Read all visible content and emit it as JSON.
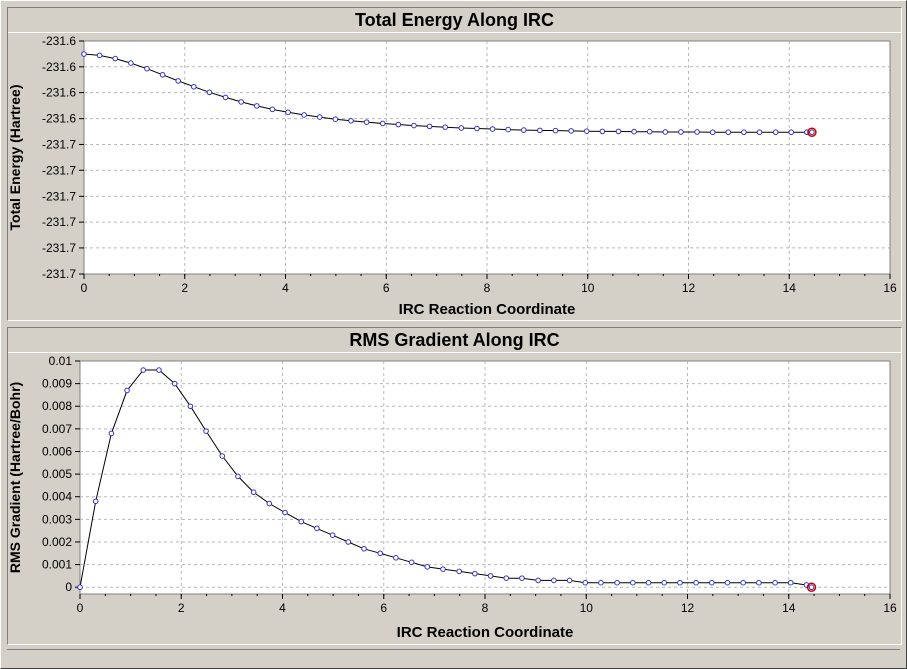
{
  "chart_data": [
    {
      "type": "line",
      "title": "Total Energy Along IRC",
      "xlabel": "IRC Reaction Coordinate",
      "ylabel": "Total Energy (Hartree)",
      "xlim": [
        0,
        16
      ],
      "ylim": [
        -231.7338,
        -231.6462
      ],
      "x_ticks": [
        0,
        2,
        4,
        6,
        8,
        10,
        12,
        14,
        16
      ],
      "y_tick_values": [
        -231.6462,
        -231.6559,
        -231.6656,
        -231.6754,
        -231.6851,
        -231.6948,
        -231.7046,
        -231.7143,
        -231.724,
        -231.7338
      ],
      "y_tick_labels": [
        "-231.6",
        "-231.6",
        "-231.6",
        "-231.6",
        "-231.7",
        "-231.7",
        "-231.7",
        "-231.7",
        "-231.7",
        "-231.7"
      ],
      "grid": true,
      "series": [
        {
          "color": "#000000",
          "marker_color": "#3333cc",
          "x": [
            0,
            0.31,
            0.62,
            0.93,
            1.25,
            1.56,
            1.87,
            2.18,
            2.49,
            2.81,
            3.12,
            3.43,
            3.74,
            4.05,
            4.37,
            4.68,
            4.99,
            5.3,
            5.61,
            5.93,
            6.24,
            6.55,
            6.86,
            7.17,
            7.49,
            7.8,
            8.11,
            8.42,
            8.73,
            9.05,
            9.36,
            9.67,
            9.98,
            10.29,
            10.61,
            10.92,
            11.23,
            11.54,
            11.85,
            12.17,
            12.48,
            12.79,
            13.1,
            13.41,
            13.73,
            14.04,
            14.35,
            14.45
          ],
          "values": [
            -231.6511,
            -231.6516,
            -231.6528,
            -231.6545,
            -231.6566,
            -231.6589,
            -231.6612,
            -231.6634,
            -231.6655,
            -231.6674,
            -231.6691,
            -231.6706,
            -231.6719,
            -231.673,
            -231.674,
            -231.6748,
            -231.6756,
            -231.6762,
            -231.6767,
            -231.6772,
            -231.6776,
            -231.678,
            -231.6783,
            -231.6786,
            -231.6789,
            -231.6791,
            -231.6793,
            -231.6795,
            -231.6797,
            -231.6798,
            -231.6799,
            -231.68,
            -231.6801,
            -231.6802,
            -231.6802,
            -231.6803,
            -231.6803,
            -231.6804,
            -231.6804,
            -231.6804,
            -231.6805,
            -231.6805,
            -231.6805,
            -231.6805,
            -231.6805,
            -231.6805,
            -231.6805,
            -231.6805
          ]
        }
      ],
      "highlight_point": {
        "x": 14.45,
        "y": -231.6805,
        "color": "#cc0000"
      }
    },
    {
      "type": "line",
      "title": "RMS Gradient Along IRC",
      "xlabel": "IRC Reaction Coordinate",
      "ylabel": "RMS Gradient (Hartree/Bohr)",
      "xlim": [
        0,
        16
      ],
      "ylim": [
        -0.0003,
        0.01
      ],
      "x_ticks": [
        0,
        2,
        4,
        6,
        8,
        10,
        12,
        14,
        16
      ],
      "y_tick_values": [
        0,
        0.001,
        0.002,
        0.003,
        0.004,
        0.005,
        0.006,
        0.007,
        0.008,
        0.009,
        0.01
      ],
      "y_tick_labels": [
        "0",
        "0.001",
        "0.002",
        "0.003",
        "0.004",
        "0.005",
        "0.006",
        "0.007",
        "0.008",
        "0.009",
        "0.01"
      ],
      "grid": true,
      "series": [
        {
          "color": "#000000",
          "marker_color": "#3333cc",
          "x": [
            0,
            0.31,
            0.62,
            0.93,
            1.25,
            1.56,
            1.87,
            2.18,
            2.49,
            2.81,
            3.12,
            3.43,
            3.74,
            4.05,
            4.37,
            4.68,
            4.99,
            5.3,
            5.61,
            5.93,
            6.24,
            6.55,
            6.86,
            7.17,
            7.49,
            7.8,
            8.11,
            8.42,
            8.73,
            9.05,
            9.36,
            9.67,
            9.98,
            10.29,
            10.61,
            10.92,
            11.23,
            11.54,
            11.85,
            12.17,
            12.48,
            12.79,
            13.1,
            13.41,
            13.73,
            14.04,
            14.35,
            14.45
          ],
          "values": [
            0.0,
            0.0038,
            0.0068,
            0.0087,
            0.0096,
            0.0096,
            0.009,
            0.008,
            0.0069,
            0.0058,
            0.0049,
            0.0042,
            0.0037,
            0.0033,
            0.0029,
            0.0026,
            0.0023,
            0.002,
            0.0017,
            0.0015,
            0.0013,
            0.0011,
            0.0009,
            0.0008,
            0.0007,
            0.0006,
            0.0005,
            0.0004,
            0.0004,
            0.0003,
            0.0003,
            0.0003,
            0.0002,
            0.0002,
            0.0002,
            0.0002,
            0.0002,
            0.0002,
            0.0002,
            0.0002,
            0.0002,
            0.0002,
            0.0002,
            0.0002,
            0.0002,
            0.0002,
            0.0001,
            0.0
          ]
        }
      ],
      "highlight_point": {
        "x": 14.45,
        "y": 0.0,
        "color": "#cc0000"
      }
    }
  ]
}
